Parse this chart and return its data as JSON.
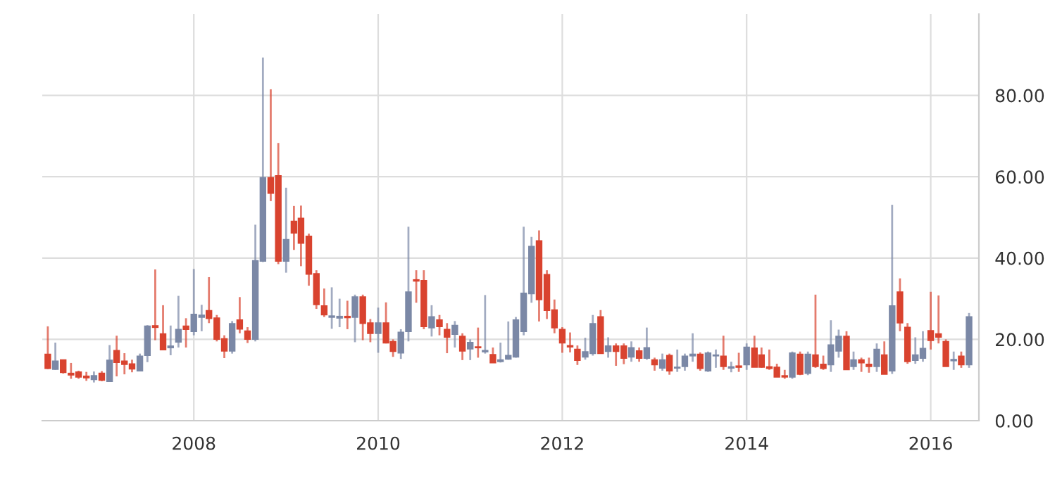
{
  "chart_data": {
    "type": "candlestick",
    "x": [
      "2006-06",
      "2006-07",
      "2006-08",
      "2006-09",
      "2006-10",
      "2006-11",
      "2006-12",
      "2007-01",
      "2007-02",
      "2007-03",
      "2007-04",
      "2007-05",
      "2007-06",
      "2007-07",
      "2007-08",
      "2007-09",
      "2007-10",
      "2007-11",
      "2007-12",
      "2008-01",
      "2008-02",
      "2008-03",
      "2008-04",
      "2008-05",
      "2008-06",
      "2008-07",
      "2008-08",
      "2008-09",
      "2008-10",
      "2008-11",
      "2008-12",
      "2009-01",
      "2009-02",
      "2009-03",
      "2009-04",
      "2009-05",
      "2009-06",
      "2009-07",
      "2009-08",
      "2009-09",
      "2009-10",
      "2009-11",
      "2009-12",
      "2010-01",
      "2010-02",
      "2010-03",
      "2010-04",
      "2010-05",
      "2010-06",
      "2010-07",
      "2010-08",
      "2010-09",
      "2010-10",
      "2010-11",
      "2010-12",
      "2011-01",
      "2011-02",
      "2011-03",
      "2011-04",
      "2011-05",
      "2011-06",
      "2011-07",
      "2011-08",
      "2011-09",
      "2011-10",
      "2011-11",
      "2011-12",
      "2012-01",
      "2012-02",
      "2012-03",
      "2012-04",
      "2012-05",
      "2012-06",
      "2012-07",
      "2012-08",
      "2012-09",
      "2012-10",
      "2012-11",
      "2012-12",
      "2013-01",
      "2013-02",
      "2013-03",
      "2013-04",
      "2013-05",
      "2013-06",
      "2013-07",
      "2013-08",
      "2013-09",
      "2013-10",
      "2013-11",
      "2013-12",
      "2014-01",
      "2014-02",
      "2014-03",
      "2014-04",
      "2014-05",
      "2014-06",
      "2014-07",
      "2014-08",
      "2014-09",
      "2014-10",
      "2014-11",
      "2014-12",
      "2015-01",
      "2015-02",
      "2015-03",
      "2015-04",
      "2015-05",
      "2015-06",
      "2015-07",
      "2015-08",
      "2015-09",
      "2015-10",
      "2015-11",
      "2015-12",
      "2016-01",
      "2016-02",
      "2016-03",
      "2016-04",
      "2016-05",
      "2016-06"
    ],
    "ohlc": [
      [
        16.3,
        23.2,
        12.7,
        12.9
      ],
      [
        12.7,
        19.2,
        12.5,
        14.6
      ],
      [
        14.9,
        14.9,
        11.6,
        11.9
      ],
      [
        11.6,
        14.2,
        10.3,
        11.3
      ],
      [
        11.9,
        12.3,
        10.3,
        10.8
      ],
      [
        10.9,
        12.0,
        9.8,
        10.6
      ],
      [
        10.2,
        12.1,
        9.4,
        11.0
      ],
      [
        11.6,
        12.2,
        9.7,
        10.0
      ],
      [
        9.7,
        18.6,
        9.7,
        14.8
      ],
      [
        17.2,
        20.9,
        10.9,
        14.4
      ],
      [
        14.6,
        16.6,
        11.4,
        13.9
      ],
      [
        13.9,
        15.0,
        11.9,
        12.8
      ],
      [
        12.3,
        16.5,
        12.3,
        15.8
      ],
      [
        16.1,
        23.5,
        14.4,
        23.2
      ],
      [
        23.3,
        37.2,
        19.8,
        23.0
      ],
      [
        21.3,
        28.4,
        17.5,
        17.5
      ],
      [
        18.0,
        23.4,
        16.1,
        18.3
      ],
      [
        19.4,
        30.7,
        18.0,
        22.4
      ],
      [
        23.2,
        25.2,
        18.0,
        22.5
      ],
      [
        22.0,
        37.3,
        21.0,
        26.1
      ],
      [
        25.5,
        28.5,
        22.0,
        25.9
      ],
      [
        27.0,
        35.3,
        24.0,
        25.2
      ],
      [
        25.2,
        26.0,
        19.5,
        20.1
      ],
      [
        20.1,
        21.0,
        15.4,
        17.2
      ],
      [
        17.2,
        24.5,
        16.5,
        23.8
      ],
      [
        24.7,
        30.4,
        21.5,
        22.6
      ],
      [
        22.0,
        23.0,
        19.1,
        20.1
      ],
      [
        20.1,
        48.2,
        19.5,
        39.3
      ],
      [
        39.3,
        89.3,
        39.0,
        59.7
      ],
      [
        59.7,
        81.5,
        54.0,
        56.0
      ],
      [
        60.2,
        68.3,
        38.5,
        39.3
      ],
      [
        39.3,
        57.3,
        36.4,
        44.5
      ],
      [
        49.0,
        52.8,
        42.0,
        46.2
      ],
      [
        49.7,
        52.9,
        38.0,
        43.7
      ],
      [
        45.3,
        46.0,
        33.2,
        36.1
      ],
      [
        36.1,
        37.0,
        27.5,
        28.6
      ],
      [
        28.2,
        32.5,
        25.5,
        26.1
      ],
      [
        25.5,
        32.8,
        22.6,
        25.7
      ],
      [
        25.3,
        30.0,
        23.0,
        25.6
      ],
      [
        25.6,
        29.5,
        22.5,
        25.4
      ],
      [
        25.5,
        31.0,
        19.3,
        30.4
      ],
      [
        30.4,
        31.0,
        19.8,
        24.0
      ],
      [
        24.0,
        25.0,
        19.3,
        21.5
      ],
      [
        21.5,
        27.8,
        16.7,
        24.0
      ],
      [
        24.0,
        29.1,
        19.0,
        19.2
      ],
      [
        19.4,
        20.0,
        15.7,
        17.1
      ],
      [
        16.7,
        22.5,
        15.2,
        21.7
      ],
      [
        22.0,
        47.7,
        19.5,
        31.6
      ],
      [
        34.6,
        37.0,
        29.0,
        34.4
      ],
      [
        34.4,
        37.0,
        22.5,
        23.2
      ],
      [
        22.9,
        28.4,
        20.7,
        25.5
      ],
      [
        24.7,
        26.0,
        21.0,
        23.2
      ],
      [
        22.4,
        24.0,
        16.6,
        20.6
      ],
      [
        21.3,
        24.5,
        18.0,
        23.4
      ],
      [
        20.7,
        21.5,
        14.9,
        17.2
      ],
      [
        17.7,
        20.0,
        14.9,
        19.2
      ],
      [
        18.1,
        22.9,
        15.5,
        18.0
      ],
      [
        17.0,
        30.9,
        16.5,
        17.2
      ],
      [
        16.2,
        18.0,
        14.3,
        14.3
      ],
      [
        14.6,
        19.2,
        14.3,
        14.9
      ],
      [
        15.2,
        24.4,
        15.0,
        16.0
      ],
      [
        15.7,
        25.5,
        15.5,
        24.7
      ],
      [
        22.0,
        47.7,
        21.0,
        31.3
      ],
      [
        31.3,
        45.2,
        29.0,
        42.8
      ],
      [
        44.2,
        46.8,
        24.4,
        29.8
      ],
      [
        35.9,
        37.0,
        25.0,
        27.2
      ],
      [
        27.2,
        29.8,
        21.5,
        22.9
      ],
      [
        22.4,
        23.0,
        16.7,
        19.2
      ],
      [
        18.4,
        21.7,
        16.8,
        18.2
      ],
      [
        17.5,
        18.5,
        13.7,
        14.9
      ],
      [
        15.7,
        20.4,
        15.0,
        16.9
      ],
      [
        16.6,
        26.0,
        16.0,
        23.8
      ],
      [
        25.5,
        27.2,
        16.6,
        16.6
      ],
      [
        17.1,
        20.5,
        15.5,
        18.3
      ],
      [
        18.3,
        19.0,
        13.5,
        17.1
      ],
      [
        18.3,
        19.0,
        13.9,
        15.4
      ],
      [
        15.7,
        19.5,
        14.5,
        17.9
      ],
      [
        17.1,
        18.0,
        14.5,
        15.4
      ],
      [
        15.4,
        22.9,
        15.0,
        17.9
      ],
      [
        14.9,
        15.5,
        12.3,
        13.8
      ],
      [
        13.0,
        16.5,
        12.3,
        14.9
      ],
      [
        16.0,
        16.5,
        11.3,
        12.3
      ],
      [
        13.0,
        17.5,
        12.0,
        13.1
      ],
      [
        13.4,
        16.5,
        12.3,
        15.8
      ],
      [
        16.0,
        21.5,
        14.5,
        16.3
      ],
      [
        16.3,
        16.8,
        12.3,
        12.9
      ],
      [
        12.3,
        17.0,
        12.0,
        16.6
      ],
      [
        16.0,
        17.5,
        13.0,
        16.1
      ],
      [
        15.8,
        20.9,
        12.5,
        13.4
      ],
      [
        13.0,
        14.5,
        11.9,
        13.2
      ],
      [
        13.4,
        16.7,
        12.0,
        13.2
      ],
      [
        13.8,
        19.0,
        12.5,
        18.0
      ],
      [
        17.8,
        20.9,
        13.2,
        13.2
      ],
      [
        16.1,
        18.0,
        13.0,
        13.2
      ],
      [
        13.2,
        17.5,
        12.5,
        12.9
      ],
      [
        13.1,
        14.0,
        10.8,
        10.8
      ],
      [
        11.0,
        12.5,
        10.3,
        10.8
      ],
      [
        10.8,
        17.0,
        10.3,
        16.6
      ],
      [
        16.3,
        17.0,
        11.2,
        11.5
      ],
      [
        11.7,
        17.0,
        11.2,
        16.3
      ],
      [
        16.1,
        31.0,
        13.0,
        13.4
      ],
      [
        13.8,
        16.0,
        12.5,
        12.9
      ],
      [
        13.8,
        24.7,
        12.0,
        18.6
      ],
      [
        17.2,
        22.4,
        15.5,
        20.7
      ],
      [
        20.7,
        22.0,
        12.6,
        12.6
      ],
      [
        13.4,
        17.0,
        12.5,
        14.9
      ],
      [
        14.9,
        15.5,
        12.0,
        14.3
      ],
      [
        13.8,
        15.5,
        11.8,
        13.4
      ],
      [
        13.4,
        19.0,
        12.0,
        17.5
      ],
      [
        16.1,
        19.5,
        11.5,
        11.5
      ],
      [
        12.3,
        53.1,
        11.5,
        28.2
      ],
      [
        31.6,
        35.0,
        22.0,
        24.1
      ],
      [
        22.9,
        24.0,
        14.0,
        14.6
      ],
      [
        14.9,
        20.5,
        14.0,
        16.1
      ],
      [
        15.4,
        22.0,
        14.5,
        17.7
      ],
      [
        22.1,
        31.7,
        17.5,
        19.8
      ],
      [
        21.3,
        30.8,
        19.0,
        20.6
      ],
      [
        19.4,
        20.0,
        13.4,
        13.4
      ],
      [
        14.8,
        17.0,
        12.5,
        15.0
      ],
      [
        15.8,
        17.0,
        13.0,
        13.8
      ],
      [
        13.8,
        26.5,
        13.0,
        25.5
      ]
    ],
    "colors": [
      "#d9432f",
      "#7b88a6",
      "#d9432f",
      "#d9432f",
      "#d9432f",
      "#d9432f",
      "#7b88a6",
      "#d9432f",
      "#7b88a6",
      "#d9432f",
      "#d9432f",
      "#d9432f",
      "#7b88a6",
      "#7b88a6",
      "#d9432f",
      "#d9432f",
      "#7b88a6",
      "#7b88a6",
      "#d9432f",
      "#7b88a6",
      "#7b88a6",
      "#d9432f",
      "#d9432f",
      "#d9432f",
      "#7b88a6",
      "#d9432f",
      "#d9432f",
      "#7b88a6",
      "#7b88a6",
      "#d9432f",
      "#d9432f",
      "#7b88a6",
      "#d9432f",
      "#d9432f",
      "#d9432f",
      "#d9432f",
      "#d9432f",
      "#7b88a6",
      "#7b88a6",
      "#d9432f",
      "#7b88a6",
      "#d9432f",
      "#d9432f",
      "#7b88a6",
      "#d9432f",
      "#d9432f",
      "#7b88a6",
      "#7b88a6",
      "#d9432f",
      "#d9432f",
      "#7b88a6",
      "#d9432f",
      "#d9432f",
      "#7b88a6",
      "#d9432f",
      "#7b88a6",
      "#d9432f",
      "#7b88a6",
      "#d9432f",
      "#7b88a6",
      "#7b88a6",
      "#7b88a6",
      "#7b88a6",
      "#7b88a6",
      "#d9432f",
      "#d9432f",
      "#d9432f",
      "#d9432f",
      "#d9432f",
      "#d9432f",
      "#7b88a6",
      "#7b88a6",
      "#d9432f",
      "#7b88a6",
      "#d9432f",
      "#d9432f",
      "#7b88a6",
      "#d9432f",
      "#7b88a6",
      "#d9432f",
      "#7b88a6",
      "#d9432f",
      "#7b88a6",
      "#7b88a6",
      "#7b88a6",
      "#d9432f",
      "#7b88a6",
      "#7b88a6",
      "#d9432f",
      "#7b88a6",
      "#d9432f",
      "#7b88a6",
      "#d9432f",
      "#d9432f",
      "#d9432f",
      "#d9432f",
      "#d9432f",
      "#7b88a6",
      "#d9432f",
      "#7b88a6",
      "#d9432f",
      "#d9432f",
      "#7b88a6",
      "#7b88a6",
      "#d9432f",
      "#7b88a6",
      "#d9432f",
      "#d9432f",
      "#7b88a6",
      "#d9432f",
      "#7b88a6",
      "#d9432f",
      "#d9432f",
      "#7b88a6",
      "#7b88a6",
      "#d9432f",
      "#d9432f",
      "#d9432f",
      "#7b88a6",
      "#d9432f",
      "#7b88a6"
    ],
    "xlim": [
      "2006-05-10",
      "2016-07-10"
    ],
    "xticks": [
      "2008",
      "2010",
      "2012",
      "2014",
      "2016"
    ],
    "ylim": [
      0,
      100
    ],
    "yticks": [
      {
        "value": 0,
        "label": "0.00"
      },
      {
        "value": 20,
        "label": "20.00"
      },
      {
        "value": 40,
        "label": "40.00"
      },
      {
        "value": 60,
        "label": "60.00"
      },
      {
        "value": 80,
        "label": "80.00"
      }
    ],
    "grid": true
  }
}
